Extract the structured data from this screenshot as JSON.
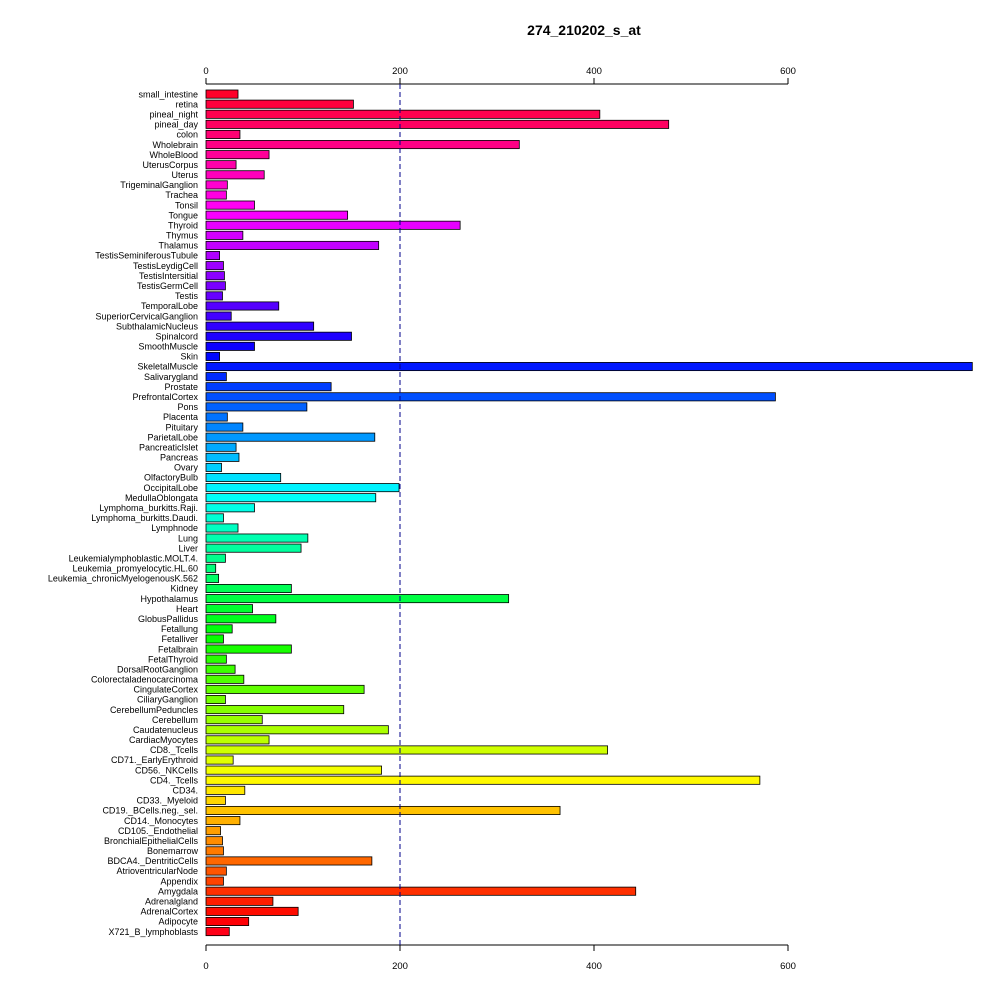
{
  "chart_data": {
    "type": "bar",
    "orientation": "horizontal",
    "title": "274_210202_s_at",
    "xlabel": "",
    "ylabel": "",
    "xlim": [
      0,
      790
    ],
    "xticks": [
      0,
      200,
      400,
      600
    ],
    "reference_line": 200,
    "grid": false,
    "legend": "none",
    "color_scheme": "rainbow",
    "categories": [
      "small_intestine",
      "retina",
      "pineal_night",
      "pineal_day",
      "colon",
      "Wholebrain",
      "WholeBlood",
      "UterusCorpus",
      "Uterus",
      "TrigeminalGanglion",
      "Trachea",
      "Tonsil",
      "Tongue",
      "Thyroid",
      "Thymus",
      "Thalamus",
      "TestisSeminiferousTubule",
      "TestisLeydigCell",
      "TestisIntersitial",
      "TestisGermCell",
      "Testis",
      "TemporalLobe",
      "SuperiorCervicalGanglion",
      "SubthalamicNucleus",
      "Spinalcord",
      "SmoothMuscle",
      "Skin",
      "SkeletalMuscle",
      "Salivarygland",
      "Prostate",
      "PrefrontalCortex",
      "Pons",
      "Placenta",
      "Pituitary",
      "ParietalLobe",
      "PancreaticIslet",
      "Pancreas",
      "Ovary",
      "OlfactoryBulb",
      "OccipitalLobe",
      "MedullaOblongata",
      "Lymphoma_burkitts.Raji.",
      "Lymphoma_burkitts.Daudi.",
      "Lymphnode",
      "Lung",
      "Liver",
      "Leukemialymphoblastic.MOLT.4.",
      "Leukemia_promyelocytic.HL.60",
      "Leukemia_chronicMyelogenousK.562",
      "Kidney",
      "Hypothalamus",
      "Heart",
      "GlobusPallidus",
      "Fetallung",
      "Fetalliver",
      "Fetalbrain",
      "FetalThyroid",
      "DorsalRootGanglion",
      "Colorectaladenocarcinoma",
      "CingulateCortex",
      "CiliaryGanglion",
      "CerebellumPeduncles",
      "Cerebellum",
      "Caudatenucleus",
      "CardiacMyocytes",
      "CD8._Tcells",
      "CD71._EarlyErythroid",
      "CD56._NKCells",
      "CD4._Tcells",
      "CD34.",
      "CD33._Myeloid",
      "CD19._BCells.neg._sel.",
      "CD14._Monocytes",
      "CD105._Endothelial",
      "BronchialEpithelialCells",
      "Bonemarrow",
      "BDCA4._DentriticCells",
      "AtrioventricularNode",
      "Appendix",
      "Amygdala",
      "Adrenalgland",
      "AdrenalCortex",
      "Adipocyte",
      "X721_B_lymphoblasts"
    ],
    "values": [
      33,
      152,
      406,
      477,
      35,
      323,
      65,
      31,
      60,
      22,
      21,
      50,
      146,
      262,
      38,
      178,
      14,
      18,
      19,
      20,
      17,
      75,
      26,
      111,
      150,
      50,
      14,
      790,
      21,
      129,
      587,
      104,
      22,
      38,
      174,
      31,
      34,
      16,
      77,
      199,
      175,
      50,
      18,
      33,
      105,
      98,
      20,
      10,
      13,
      88,
      312,
      48,
      72,
      27,
      18,
      88,
      21,
      30,
      39,
      163,
      20,
      142,
      58,
      188,
      65,
      414,
      28,
      181,
      571,
      40,
      20,
      365,
      35,
      15,
      17,
      18,
      171,
      21,
      18,
      443,
      69,
      95,
      44,
      24
    ]
  }
}
